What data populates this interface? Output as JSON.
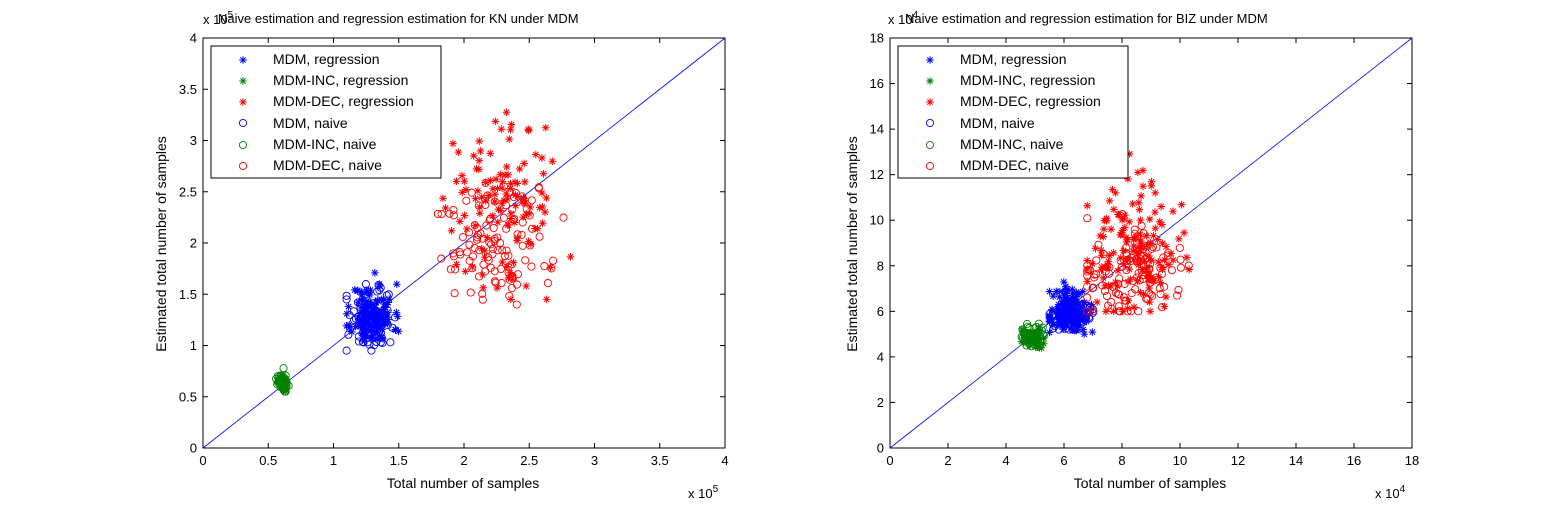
{
  "chart_data": [
    {
      "type": "scatter",
      "title": "Naive estimation and regression estimation for KN under MDM",
      "xlabel": "Total number of samples",
      "ylabel": "Estimated total number of samples",
      "x_multiplier": "x 10",
      "x_exponent": "5",
      "y_multiplier": "x 10",
      "y_exponent": "5",
      "xlim": [
        0,
        4
      ],
      "ylim": [
        0,
        4
      ],
      "xticks": [
        0,
        0.5,
        1,
        1.5,
        2,
        2.5,
        3,
        3.5,
        4
      ],
      "yticks": [
        0,
        0.5,
        1,
        1.5,
        2,
        2.5,
        3,
        3.5,
        4
      ],
      "xtick_labels": [
        "0",
        "0.5",
        "1",
        "1.5",
        "2",
        "2.5",
        "3",
        "3.5",
        "4"
      ],
      "ytick_labels": [
        "0",
        "0.5",
        "1",
        "1.5",
        "2",
        "2.5",
        "3",
        "3.5",
        "4"
      ],
      "reference_line": [
        [
          0,
          0
        ],
        [
          4,
          4
        ]
      ],
      "legend": "top-left",
      "series": [
        {
          "name": "MDM, regression",
          "marker": "star",
          "color": "#0000ff",
          "seed": 11,
          "n": 130,
          "cx": 1.3,
          "cy": 1.3,
          "sx": 0.08,
          "sy": 0.15,
          "xmin": 1.1,
          "xmax": 1.6,
          "ymin": 0.95,
          "ymax": 2.05
        },
        {
          "name": "MDM-INC, regression",
          "marker": "star",
          "color": "#008000",
          "seed": 12,
          "n": 45,
          "cx": 0.62,
          "cy": 0.63,
          "sx": 0.02,
          "sy": 0.04,
          "xmin": 0.57,
          "xmax": 0.68,
          "ymin": 0.55,
          "ymax": 0.78
        },
        {
          "name": "MDM-DEC, regression",
          "marker": "star",
          "color": "#ff0000",
          "seed": 13,
          "n": 120,
          "cx": 2.3,
          "cy": 2.4,
          "sx": 0.22,
          "sy": 0.42,
          "xmin": 1.8,
          "xmax": 2.95,
          "ymin": 1.45,
          "ymax": 3.85
        },
        {
          "name": "MDM, naive",
          "marker": "circle",
          "color": "#0000ff",
          "seed": 14,
          "n": 90,
          "cx": 1.3,
          "cy": 1.25,
          "sx": 0.09,
          "sy": 0.16,
          "xmin": 1.1,
          "xmax": 1.6,
          "ymin": 0.95,
          "ymax": 2.05
        },
        {
          "name": "MDM-INC, naive",
          "marker": "circle",
          "color": "#008000",
          "seed": 15,
          "n": 45,
          "cx": 0.61,
          "cy": 0.65,
          "sx": 0.02,
          "sy": 0.05,
          "xmin": 0.56,
          "xmax": 0.67,
          "ymin": 0.55,
          "ymax": 0.8
        },
        {
          "name": "MDM-DEC, naive",
          "marker": "circle",
          "color": "#ff0000",
          "seed": 16,
          "n": 110,
          "cx": 2.25,
          "cy": 2.0,
          "sx": 0.2,
          "sy": 0.3,
          "xmin": 1.8,
          "xmax": 2.95,
          "ymin": 1.4,
          "ymax": 2.95
        }
      ]
    },
    {
      "type": "scatter",
      "title": "Naive estimation and regression estimation for BIZ under MDM",
      "xlabel": "Total number of samples",
      "ylabel": "Estimated total number of samples",
      "x_multiplier": "x 10",
      "x_exponent": "4",
      "y_multiplier": "x 10",
      "y_exponent": "4",
      "xlim": [
        0,
        18
      ],
      "ylim": [
        0,
        18
      ],
      "xticks": [
        0,
        2,
        4,
        6,
        8,
        10,
        12,
        14,
        16,
        18
      ],
      "yticks": [
        0,
        2,
        4,
        6,
        8,
        10,
        12,
        14,
        16,
        18
      ],
      "xtick_labels": [
        "0",
        "2",
        "4",
        "6",
        "8",
        "10",
        "12",
        "14",
        "16",
        "18"
      ],
      "ytick_labels": [
        "0",
        "2",
        "4",
        "6",
        "8",
        "10",
        "12",
        "14",
        "16",
        "18"
      ],
      "reference_line": [
        [
          0,
          0
        ],
        [
          18,
          18
        ]
      ],
      "legend": "top-left",
      "series": [
        {
          "name": "MDM, regression",
          "marker": "star",
          "color": "#0000ff",
          "seed": 21,
          "n": 150,
          "cx": 6.2,
          "cy": 6.0,
          "sx": 0.35,
          "sy": 0.5,
          "xmin": 5.5,
          "xmax": 7.0,
          "ymin": 5.0,
          "ymax": 9.4
        },
        {
          "name": "MDM-INC, regression",
          "marker": "star",
          "color": "#008000",
          "seed": 22,
          "n": 50,
          "cx": 4.9,
          "cy": 4.8,
          "sx": 0.2,
          "sy": 0.2,
          "xmin": 4.5,
          "xmax": 5.3,
          "ymin": 4.4,
          "ymax": 5.4
        },
        {
          "name": "MDM-DEC, regression",
          "marker": "star",
          "color": "#ff0000",
          "seed": 23,
          "n": 140,
          "cx": 8.3,
          "cy": 8.6,
          "sx": 0.8,
          "sy": 1.4,
          "xmin": 6.8,
          "xmax": 10.5,
          "ymin": 6.0,
          "ymax": 16.8
        },
        {
          "name": "MDM, naive",
          "marker": "circle",
          "color": "#0000ff",
          "seed": 24,
          "n": 100,
          "cx": 6.2,
          "cy": 5.8,
          "sx": 0.35,
          "sy": 0.35,
          "xmin": 5.5,
          "xmax": 7.0,
          "ymin": 5.2,
          "ymax": 9.2
        },
        {
          "name": "MDM-INC, naive",
          "marker": "circle",
          "color": "#008000",
          "seed": 25,
          "n": 50,
          "cx": 4.9,
          "cy": 4.9,
          "sx": 0.2,
          "sy": 0.2,
          "xmin": 4.5,
          "xmax": 5.3,
          "ymin": 4.4,
          "ymax": 5.5
        },
        {
          "name": "MDM-DEC, naive",
          "marker": "circle",
          "color": "#ff0000",
          "seed": 26,
          "n": 120,
          "cx": 8.3,
          "cy": 7.8,
          "sx": 0.9,
          "sy": 1.0,
          "xmin": 6.8,
          "xmax": 10.5,
          "ymin": 6.0,
          "ymax": 10.3
        }
      ]
    }
  ]
}
